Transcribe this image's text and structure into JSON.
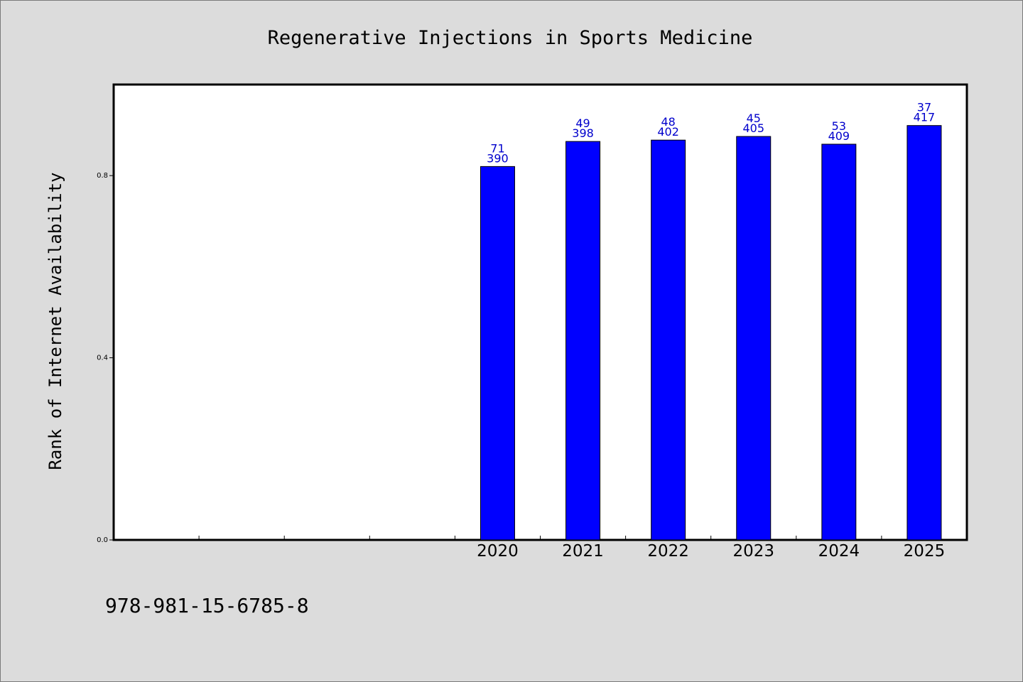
{
  "chart_data": {
    "type": "bar",
    "title": "Regenerative Injections in Sports Medicine",
    "xlabel": "",
    "ylabel": "Rank of Internet Availability",
    "categories": [
      "",
      "",
      "",
      "",
      "2020",
      "2021",
      "2022",
      "2023",
      "2024",
      "2025"
    ],
    "values": [
      null,
      null,
      null,
      null,
      0.82,
      0.875,
      0.878,
      0.886,
      0.869,
      0.91
    ],
    "data_labels_top": [
      "",
      "",
      "",
      "",
      "71",
      "49",
      "48",
      "45",
      "53",
      "37"
    ],
    "data_labels_bottom": [
      "",
      "",
      "",
      "",
      "390",
      "398",
      "402",
      "405",
      "409",
      "417"
    ],
    "ylim": [
      0.0,
      1.0
    ],
    "yticks": [
      0.0,
      0.4,
      0.8
    ],
    "ytick_labels": [
      "0.0",
      "0.4",
      "0.8"
    ],
    "grid": false,
    "bar_color": "#0000ff",
    "label_color": "#0000cc"
  },
  "footer": {
    "isbn": "978-981-15-6785-8"
  }
}
